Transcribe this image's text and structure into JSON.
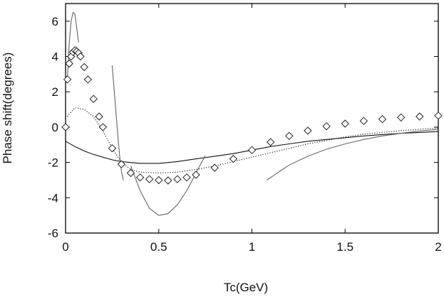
{
  "chart_data": {
    "type": "line",
    "title": "",
    "xlabel": "Tc(GeV)",
    "ylabel": "Phase shift(degrees)",
    "xlim": [
      0,
      2
    ],
    "ylim": [
      -6,
      7
    ],
    "xticks": [
      0,
      0.5,
      1,
      1.5,
      2
    ],
    "xtick_labels": [
      "0",
      "0.5",
      "1",
      "1.5",
      "2"
    ],
    "yticks": [
      -6,
      -4,
      -2,
      0,
      2,
      4,
      6
    ],
    "ytick_labels": [
      "-6",
      "-4",
      "-2",
      "0",
      "2",
      "4",
      "6"
    ],
    "grid": false,
    "legend": "none",
    "series": [
      {
        "name": "diamond-markers",
        "style": "diamond markers",
        "x": [
          0,
          0.01,
          0.02,
          0.03,
          0.04,
          0.05,
          0.06,
          0.07,
          0.08,
          0.1,
          0.12,
          0.15,
          0.18,
          0.2,
          0.25,
          0.3,
          0.35,
          0.4,
          0.45,
          0.5,
          0.55,
          0.6,
          0.65,
          0.7,
          0.8,
          0.9,
          1.0,
          1.1,
          1.2,
          1.3,
          1.4,
          1.5,
          1.6,
          1.7,
          1.8,
          1.9,
          2.0
        ],
        "y": [
          0,
          2.7,
          3.6,
          4.0,
          4.25,
          4.35,
          4.3,
          4.2,
          4.0,
          3.4,
          2.7,
          1.6,
          0.6,
          0.0,
          -1.2,
          -2.1,
          -2.6,
          -2.85,
          -2.95,
          -3.0,
          -3.02,
          -2.95,
          -2.85,
          -2.7,
          -2.3,
          -1.8,
          -1.3,
          -0.85,
          -0.5,
          -0.2,
          0.05,
          0.2,
          0.35,
          0.45,
          0.55,
          0.6,
          0.65
        ]
      },
      {
        "name": "dotted-curve",
        "style": "dotted",
        "x": [
          0,
          0.05,
          0.1,
          0.15,
          0.2,
          0.25,
          0.3,
          0.35,
          0.4,
          0.5,
          0.6,
          0.7,
          0.8,
          0.9,
          1.0,
          1.1,
          1.2,
          1.3,
          1.4,
          1.5,
          1.6,
          1.7,
          1.8,
          1.9,
          2.0
        ],
        "y": [
          0.5,
          1.1,
          1.0,
          0.6,
          -0.2,
          -1.2,
          -2.0,
          -2.4,
          -2.55,
          -2.6,
          -2.55,
          -2.4,
          -2.2,
          -1.95,
          -1.7,
          -1.45,
          -1.2,
          -0.95,
          -0.75,
          -0.55,
          -0.4,
          -0.3,
          -0.2,
          -0.12,
          -0.05
        ]
      },
      {
        "name": "thin-solid-curve",
        "style": "solid",
        "x": [
          0,
          0.05,
          0.1,
          0.15,
          0.2,
          0.25,
          0.3,
          0.4,
          0.5,
          0.6,
          0.7,
          0.8,
          0.9,
          1.0,
          1.1,
          1.2,
          1.3,
          1.4,
          1.5,
          1.6,
          1.7,
          1.8,
          1.9,
          2.0
        ],
        "y": [
          -0.8,
          -1.1,
          -1.35,
          -1.55,
          -1.7,
          -1.85,
          -1.95,
          -2.05,
          -2.05,
          -1.95,
          -1.8,
          -1.65,
          -1.5,
          -1.3,
          -1.1,
          -0.95,
          -0.8,
          -0.7,
          -0.6,
          -0.5,
          -0.42,
          -0.35,
          -0.3,
          -0.25
        ]
      },
      {
        "name": "gray-expansion-curve-1",
        "style": "solid gray",
        "x": [
          0.01,
          0.02,
          0.03,
          0.04,
          0.05,
          0.06,
          0.07
        ],
        "y": [
          2.8,
          4.8,
          6.0,
          6.5,
          6.4,
          5.6,
          4.8
        ]
      },
      {
        "name": "gray-expansion-curve-2",
        "style": "solid gray",
        "x": [
          0.25,
          0.26,
          0.27,
          0.28,
          0.29,
          0.3,
          0.31
        ],
        "y": [
          3.5,
          2.2,
          0.9,
          -0.4,
          -1.6,
          -2.5,
          -3.0
        ]
      },
      {
        "name": "gray-expansion-curve-3",
        "style": "solid gray",
        "x": [
          0.35,
          0.4,
          0.45,
          0.5,
          0.55,
          0.6,
          0.65,
          0.7,
          0.75
        ],
        "y": [
          -2.2,
          -3.6,
          -4.6,
          -5.0,
          -4.9,
          -4.4,
          -3.6,
          -2.6,
          -1.6
        ]
      },
      {
        "name": "gray-expansion-curve-4",
        "style": "solid gray",
        "x": [
          1.08,
          1.15,
          1.2,
          1.3,
          1.4,
          1.5,
          1.6,
          1.7,
          1.8,
          1.9,
          2.0
        ],
        "y": [
          -3.0,
          -2.5,
          -2.15,
          -1.65,
          -1.25,
          -0.95,
          -0.7,
          -0.5,
          -0.35,
          -0.22,
          -0.12
        ]
      }
    ]
  }
}
